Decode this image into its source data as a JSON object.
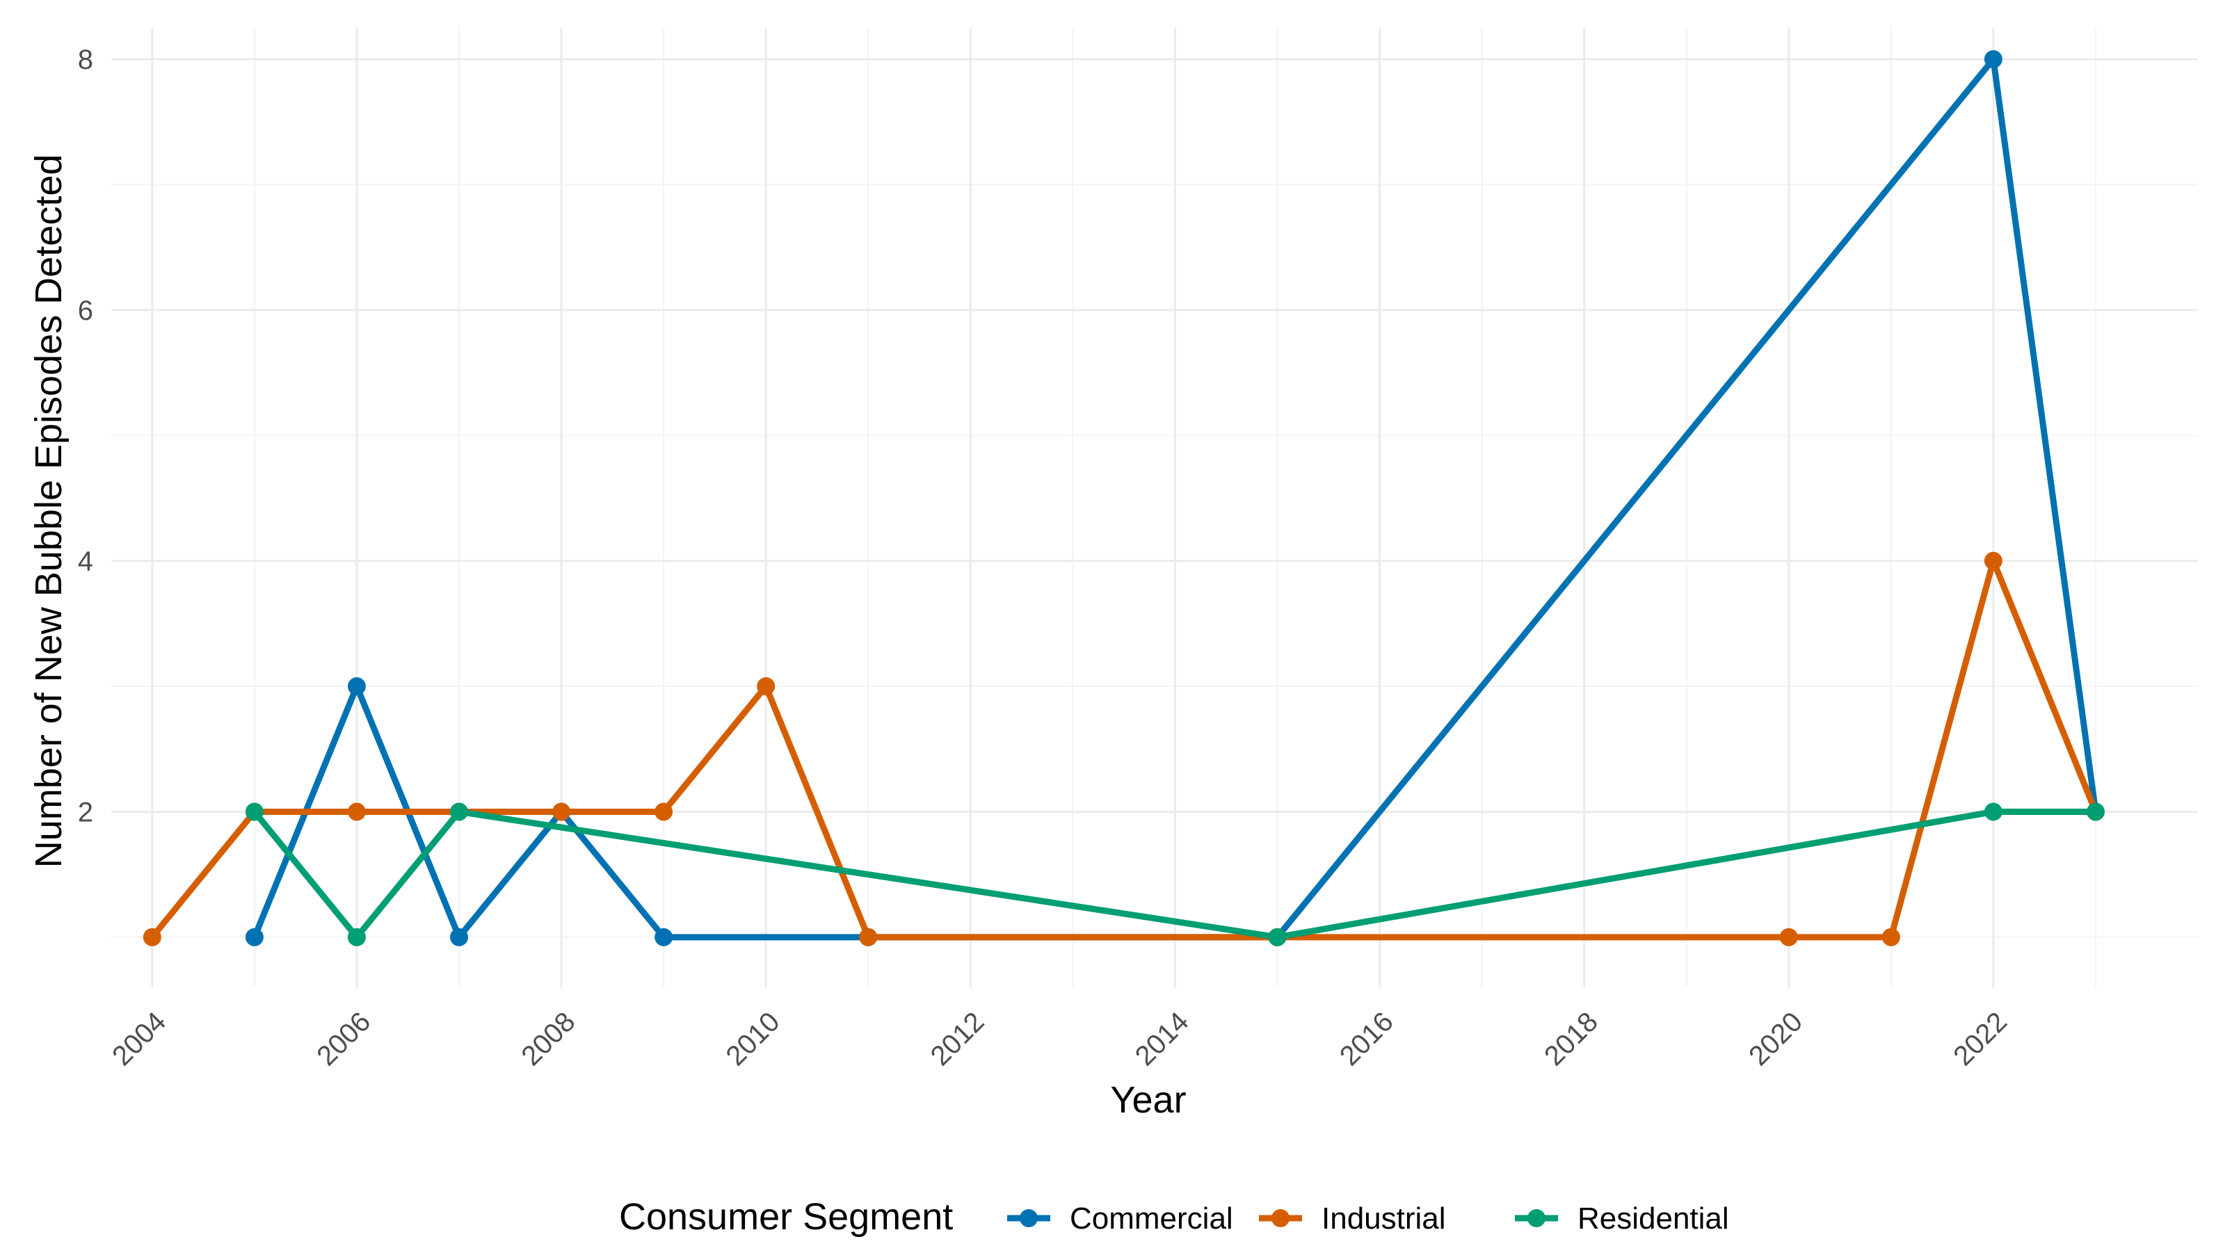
{
  "chart_data": {
    "type": "line",
    "title": "",
    "xlabel": "Year",
    "ylabel": "Number of New Bubble Episodes Detected",
    "xlim": [
      2003.6,
      2024.0
    ],
    "ylim": [
      0.6,
      8.25
    ],
    "x_ticks": [
      2004,
      2006,
      2008,
      2010,
      2012,
      2014,
      2016,
      2018,
      2020,
      2022
    ],
    "x_tick_labels": [
      "2004",
      "2006",
      "2008",
      "2010",
      "2012",
      "2014",
      "2016",
      "2018",
      "2020",
      "2022"
    ],
    "y_ticks": [
      2,
      4,
      6,
      8
    ],
    "y_tick_labels": [
      "2",
      "4",
      "6",
      "8"
    ],
    "grid": true,
    "legend": {
      "title": "Consumer Segment",
      "position": "bottom"
    },
    "series": [
      {
        "name": "Commercial",
        "color": "#0072B2",
        "x": [
          2005,
          2006,
          2007,
          2008,
          2009,
          2011,
          2015,
          2022,
          2023
        ],
        "y": [
          1,
          3,
          1,
          2,
          1,
          1,
          1,
          8,
          2
        ]
      },
      {
        "name": "Industrial",
        "color": "#D55E00",
        "x": [
          2004,
          2005,
          2006,
          2007,
          2008,
          2009,
          2010,
          2011,
          2015,
          2020,
          2021,
          2022,
          2023
        ],
        "y": [
          1,
          2,
          2,
          2,
          2,
          2,
          3,
          1,
          1,
          1,
          1,
          4,
          2
        ]
      },
      {
        "name": "Residential",
        "color": "#009E73",
        "x": [
          2005,
          2006,
          2007,
          2015,
          2022,
          2023
        ],
        "y": [
          2,
          1,
          2,
          1,
          2,
          2
        ]
      }
    ]
  }
}
